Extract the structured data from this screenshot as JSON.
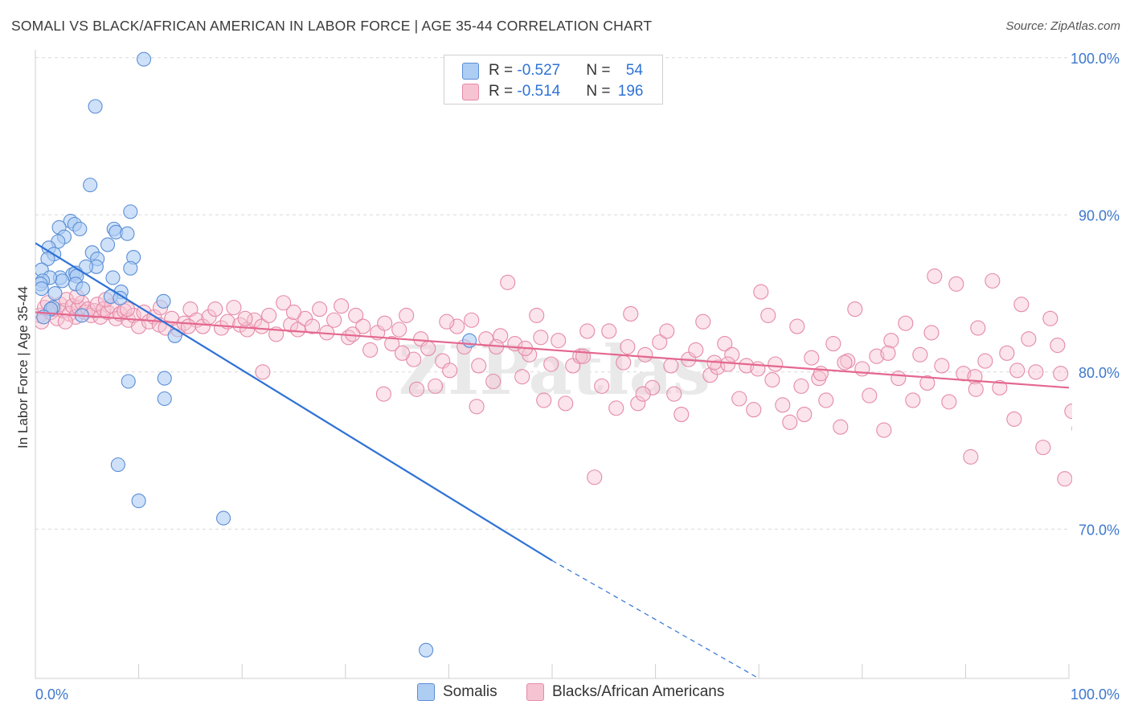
{
  "title": "SOMALI VS BLACK/AFRICAN AMERICAN IN LABOR FORCE | AGE 35-44 CORRELATION CHART",
  "source": "Source: ZipAtlas.com",
  "watermark": "ZIPatlas",
  "colors": {
    "somali_fill": "#aecdf3",
    "somali_stroke": "#5b8ed6",
    "somali_line": "#2f72d6",
    "black_fill": "#f6c3d3",
    "black_stroke": "#e58aa8",
    "black_line": "#e4678f",
    "tick_label": "#3e78cc",
    "grid": "#d9d9d9"
  },
  "legend": {
    "rows": [
      {
        "r_label": "R = ",
        "r_value": "-0.527",
        "n_label": "N = ",
        "n_value": "54"
      },
      {
        "r_label": "R = ",
        "r_value": "-0.514",
        "n_label": "N = ",
        "n_value": "196"
      }
    ]
  },
  "bottom_legend": {
    "somali": "Somalis",
    "black": "Blacks/African Americans"
  },
  "chart_data": {
    "type": "scatter",
    "title": "SOMALI VS BLACK/AFRICAN AMERICAN IN LABOR FORCE | AGE 35-44 CORRELATION CHART",
    "xlabel": "",
    "ylabel": "In Labor Force | Age 35-44",
    "xlim": [
      0,
      100
    ],
    "ylim": [
      60.5,
      100.5
    ],
    "x_tick_labels": [
      {
        "value": 0,
        "label": "0.0%"
      },
      {
        "value": 100,
        "label": "100.0%"
      }
    ],
    "y_tick_labels": [
      {
        "value": 100,
        "label": "100.0%"
      },
      {
        "value": 90,
        "label": "90.0%"
      },
      {
        "value": 80,
        "label": "80.0%"
      },
      {
        "value": 70,
        "label": "70.0%"
      }
    ],
    "x_minor_ticks": [
      0,
      10,
      20,
      30,
      40,
      50,
      60,
      70,
      80,
      90,
      100
    ],
    "y_gridlines": [
      100,
      90,
      80,
      70
    ],
    "grid": true,
    "legend_position": "top-center",
    "series": [
      {
        "name": "Somalis",
        "color": "#aecdf3",
        "r": -0.527,
        "n": 54,
        "trend": {
          "x0": 0,
          "y0": 88.2,
          "x1": 50,
          "y1": 68.0,
          "dashed_to_x": 70,
          "dashed_to_y": 60.5
        },
        "points": [
          [
            10.5,
            99.9
          ],
          [
            5.8,
            96.9
          ],
          [
            5.3,
            91.9
          ],
          [
            9.2,
            90.2
          ],
          [
            3.4,
            89.6
          ],
          [
            3.8,
            89.4
          ],
          [
            2.3,
            89.2
          ],
          [
            4.3,
            89.1
          ],
          [
            7.6,
            89.1
          ],
          [
            7.8,
            88.9
          ],
          [
            8.9,
            88.8
          ],
          [
            2.8,
            88.6
          ],
          [
            2.2,
            88.3
          ],
          [
            7.0,
            88.1
          ],
          [
            1.3,
            87.9
          ],
          [
            5.5,
            87.6
          ],
          [
            1.8,
            87.5
          ],
          [
            9.5,
            87.3
          ],
          [
            1.2,
            87.2
          ],
          [
            6.0,
            87.2
          ],
          [
            5.9,
            86.7
          ],
          [
            4.9,
            86.7
          ],
          [
            0.6,
            86.5
          ],
          [
            9.2,
            86.6
          ],
          [
            3.6,
            86.2
          ],
          [
            3.9,
            86.3
          ],
          [
            4.0,
            86.1
          ],
          [
            7.5,
            86.0
          ],
          [
            2.4,
            86.0
          ],
          [
            2.6,
            85.8
          ],
          [
            1.4,
            86.0
          ],
          [
            0.7,
            85.8
          ],
          [
            0.5,
            85.6
          ],
          [
            3.9,
            85.6
          ],
          [
            4.6,
            85.3
          ],
          [
            0.6,
            85.3
          ],
          [
            8.3,
            85.1
          ],
          [
            1.9,
            85.0
          ],
          [
            7.3,
            84.8
          ],
          [
            8.2,
            84.7
          ],
          [
            12.4,
            84.5
          ],
          [
            1.7,
            84.1
          ],
          [
            1.5,
            84.0
          ],
          [
            4.5,
            83.6
          ],
          [
            0.8,
            83.5
          ],
          [
            13.5,
            82.3
          ],
          [
            42.0,
            82.0
          ],
          [
            12.5,
            79.6
          ],
          [
            9.0,
            79.4
          ],
          [
            12.5,
            78.3
          ],
          [
            8.0,
            74.1
          ],
          [
            10.0,
            71.8
          ],
          [
            18.2,
            70.7
          ],
          [
            37.8,
            62.3
          ]
        ]
      },
      {
        "name": "Blacks/African Americans",
        "color": "#f6c3d3",
        "r": -0.514,
        "n": 196,
        "trend": {
          "x0": 0,
          "y0": 83.8,
          "x1": 100,
          "y1": 79.0
        },
        "points": [
          [
            0.4,
            83.6
          ],
          [
            0.6,
            83.2
          ],
          [
            0.9,
            84.1
          ],
          [
            1.2,
            84.4
          ],
          [
            1.5,
            83.8
          ],
          [
            1.8,
            84.0
          ],
          [
            2.1,
            83.4
          ],
          [
            2.4,
            84.3
          ],
          [
            2.7,
            83.9
          ],
          [
            3.0,
            84.6
          ],
          [
            3.3,
            83.7
          ],
          [
            3.6,
            84.2
          ],
          [
            3.9,
            83.5
          ],
          [
            4.2,
            84.1
          ],
          [
            4.5,
            84.4
          ],
          [
            4.8,
            83.8
          ],
          [
            5.1,
            84.0
          ],
          [
            5.4,
            83.6
          ],
          [
            5.7,
            83.9
          ],
          [
            6.0,
            84.3
          ],
          [
            6.3,
            83.5
          ],
          [
            6.6,
            84.0
          ],
          [
            7.0,
            83.8
          ],
          [
            7.4,
            84.2
          ],
          [
            7.8,
            83.4
          ],
          [
            8.2,
            83.7
          ],
          [
            8.6,
            83.9
          ],
          [
            9.0,
            83.3
          ],
          [
            9.5,
            83.6
          ],
          [
            10.0,
            82.9
          ],
          [
            10.5,
            83.8
          ],
          [
            11.0,
            83.2
          ],
          [
            11.5,
            83.5
          ],
          [
            12.0,
            83.0
          ],
          [
            12.6,
            82.8
          ],
          [
            13.2,
            83.4
          ],
          [
            13.8,
            82.7
          ],
          [
            14.4,
            83.1
          ],
          [
            15.0,
            84.0
          ],
          [
            15.6,
            83.3
          ],
          [
            16.2,
            82.9
          ],
          [
            16.8,
            83.5
          ],
          [
            17.4,
            84.0
          ],
          [
            18.0,
            82.8
          ],
          [
            18.6,
            83.2
          ],
          [
            19.2,
            84.1
          ],
          [
            19.8,
            83.0
          ],
          [
            20.5,
            82.7
          ],
          [
            21.2,
            83.3
          ],
          [
            21.9,
            82.9
          ],
          [
            22.6,
            83.6
          ],
          [
            23.3,
            82.4
          ],
          [
            24.0,
            84.4
          ],
          [
            24.7,
            83.0
          ],
          [
            25.4,
            82.7
          ],
          [
            26.1,
            83.4
          ],
          [
            26.8,
            82.9
          ],
          [
            27.5,
            84.0
          ],
          [
            28.2,
            82.5
          ],
          [
            28.9,
            83.3
          ],
          [
            29.6,
            84.2
          ],
          [
            30.3,
            82.2
          ],
          [
            31.0,
            83.6
          ],
          [
            31.7,
            82.9
          ],
          [
            32.4,
            81.4
          ],
          [
            33.1,
            82.5
          ],
          [
            33.8,
            83.1
          ],
          [
            34.5,
            81.8
          ],
          [
            35.2,
            82.7
          ],
          [
            35.9,
            83.6
          ],
          [
            36.6,
            80.8
          ],
          [
            37.3,
            82.1
          ],
          [
            38.0,
            81.5
          ],
          [
            38.7,
            79.1
          ],
          [
            39.4,
            80.7
          ],
          [
            40.1,
            80.1
          ],
          [
            40.8,
            82.9
          ],
          [
            41.5,
            81.6
          ],
          [
            42.2,
            83.3
          ],
          [
            42.9,
            80.4
          ],
          [
            43.6,
            82.1
          ],
          [
            44.3,
            79.4
          ],
          [
            45.0,
            82.3
          ],
          [
            45.7,
            85.7
          ],
          [
            46.4,
            81.8
          ],
          [
            47.1,
            79.7
          ],
          [
            47.8,
            81.1
          ],
          [
            48.5,
            83.6
          ],
          [
            49.2,
            78.2
          ],
          [
            49.9,
            80.5
          ],
          [
            50.6,
            82.0
          ],
          [
            51.3,
            78.0
          ],
          [
            52.0,
            80.4
          ],
          [
            52.7,
            81.0
          ],
          [
            53.4,
            82.6
          ],
          [
            54.1,
            73.3
          ],
          [
            54.8,
            79.1
          ],
          [
            55.5,
            82.6
          ],
          [
            56.2,
            77.7
          ],
          [
            56.9,
            80.6
          ],
          [
            57.6,
            83.7
          ],
          [
            58.3,
            78.0
          ],
          [
            59.0,
            81.1
          ],
          [
            59.7,
            79.0
          ],
          [
            60.4,
            81.9
          ],
          [
            61.1,
            82.6
          ],
          [
            61.8,
            78.6
          ],
          [
            62.5,
            77.3
          ],
          [
            63.2,
            80.8
          ],
          [
            63.9,
            81.4
          ],
          [
            64.6,
            83.2
          ],
          [
            65.3,
            79.8
          ],
          [
            66.0,
            80.3
          ],
          [
            66.7,
            81.8
          ],
          [
            67.4,
            81.1
          ],
          [
            68.1,
            78.3
          ],
          [
            68.8,
            80.4
          ],
          [
            69.5,
            77.6
          ],
          [
            70.2,
            85.1
          ],
          [
            70.9,
            83.6
          ],
          [
            71.6,
            80.5
          ],
          [
            72.3,
            77.9
          ],
          [
            73.0,
            76.8
          ],
          [
            73.7,
            82.9
          ],
          [
            74.4,
            77.3
          ],
          [
            75.1,
            80.9
          ],
          [
            75.8,
            79.6
          ],
          [
            76.5,
            78.2
          ],
          [
            77.2,
            81.8
          ],
          [
            77.9,
            76.5
          ],
          [
            78.6,
            80.7
          ],
          [
            79.3,
            84.0
          ],
          [
            80.0,
            80.2
          ],
          [
            80.7,
            78.5
          ],
          [
            81.4,
            81.0
          ],
          [
            82.1,
            76.3
          ],
          [
            82.8,
            82.0
          ],
          [
            83.5,
            79.6
          ],
          [
            84.2,
            83.1
          ],
          [
            84.9,
            78.2
          ],
          [
            85.6,
            81.1
          ],
          [
            86.3,
            79.3
          ],
          [
            87.0,
            86.1
          ],
          [
            87.7,
            80.4
          ],
          [
            88.4,
            78.1
          ],
          [
            89.1,
            85.6
          ],
          [
            89.8,
            79.9
          ],
          [
            90.5,
            74.6
          ],
          [
            91.2,
            82.8
          ],
          [
            91.9,
            80.7
          ],
          [
            92.6,
            85.8
          ],
          [
            93.3,
            79.0
          ],
          [
            94.0,
            81.2
          ],
          [
            94.7,
            77.0
          ],
          [
            95.4,
            84.3
          ],
          [
            96.1,
            82.1
          ],
          [
            96.8,
            80.0
          ],
          [
            97.5,
            75.2
          ],
          [
            98.2,
            83.4
          ],
          [
            98.9,
            81.7
          ],
          [
            99.6,
            73.2
          ],
          [
            100.3,
            77.5
          ],
          [
            101.0,
            76.4
          ],
          [
            101.7,
            78.3
          ],
          [
            102.4,
            81.8
          ],
          [
            12.1,
            84.1
          ],
          [
            6.8,
            84.6
          ],
          [
            4.0,
            84.8
          ],
          [
            20.3,
            83.4
          ],
          [
            25.0,
            83.8
          ],
          [
            30.7,
            82.4
          ],
          [
            35.5,
            81.2
          ],
          [
            39.8,
            83.2
          ],
          [
            44.6,
            81.6
          ],
          [
            48.9,
            82.2
          ],
          [
            53.0,
            81.0
          ],
          [
            57.3,
            81.6
          ],
          [
            61.5,
            80.4
          ],
          [
            65.7,
            80.6
          ],
          [
            69.9,
            80.2
          ],
          [
            74.1,
            79.1
          ],
          [
            78.3,
            80.6
          ],
          [
            82.5,
            81.2
          ],
          [
            86.7,
            82.5
          ],
          [
            90.9,
            79.7
          ],
          [
            95.0,
            80.1
          ],
          [
            99.2,
            79.9
          ],
          [
            2.9,
            83.2
          ],
          [
            8.9,
            84.0
          ],
          [
            14.8,
            82.9
          ],
          [
            22.0,
            80.0
          ],
          [
            33.7,
            78.6
          ],
          [
            36.9,
            78.9
          ],
          [
            42.7,
            77.8
          ],
          [
            47.4,
            81.5
          ],
          [
            58.8,
            78.6
          ],
          [
            67.0,
            80.5
          ],
          [
            71.3,
            79.5
          ],
          [
            76.0,
            79.9
          ],
          [
            91.0,
            78.9
          ]
        ]
      }
    ]
  }
}
